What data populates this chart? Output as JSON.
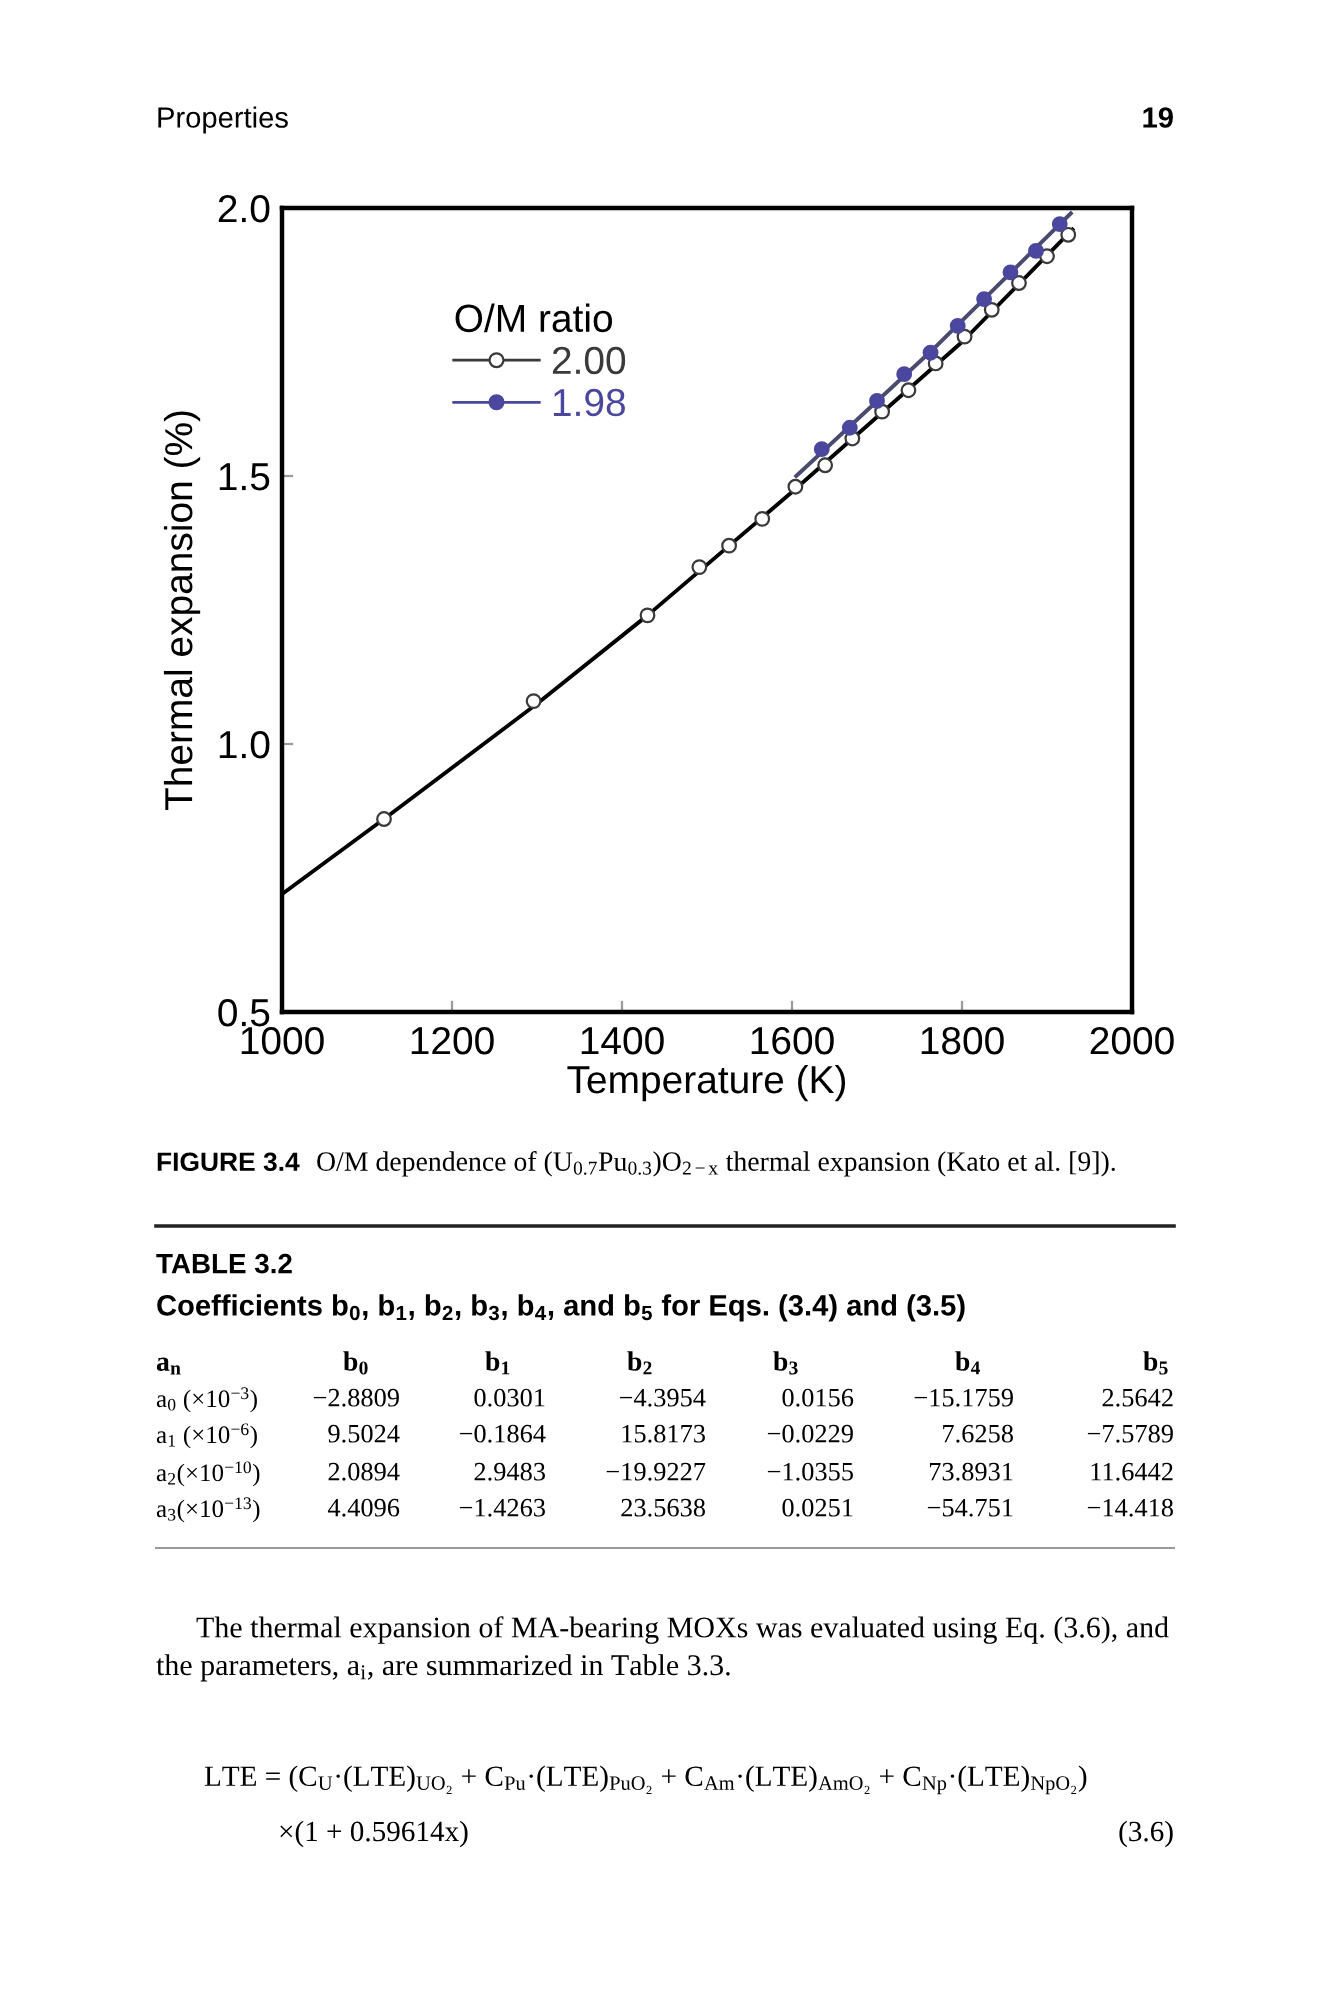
{
  "chart_data": {
    "type": "scatter",
    "xlabel": "Temperature (K)",
    "ylabel": "Thermal expansion (%)",
    "legend_title": "O/M ratio",
    "legend": "top left",
    "xlim": [
      1000,
      2000
    ],
    "xticks": [
      1000,
      1200,
      1400,
      1600,
      1800,
      2000
    ],
    "ylim": [
      0.5,
      2.0
    ],
    "yticks": [
      0.5,
      {
        "value": 1,
        "label": "1.0"
      },
      1.5,
      {
        "value": 2,
        "label": "2.0"
      }
    ],
    "series": [
      {
        "type": "line",
        "marker": "none",
        "color": "#000000",
        "x": [
          1000,
          1120,
          1300,
          1430,
          1600,
          1800,
          1930
        ],
        "values": [
          0.72,
          0.86,
          1.075,
          1.24,
          1.47,
          1.75,
          1.96
        ]
      },
      {
        "type": "line",
        "marker": "none",
        "color": "#4a4a6e",
        "x": [
          1605,
          1765,
          1928
        ],
        "values": [
          1.5,
          1.735,
          1.99
        ]
      },
      {
        "name": "2.00",
        "marker": "circle-open",
        "color": "#3a3a3a",
        "x": [
          1120,
          1296,
          1430,
          1491,
          1526,
          1565,
          1604,
          1639,
          1671,
          1706,
          1737,
          1769,
          1803,
          1835,
          1867,
          1900,
          1925
        ],
        "values": [
          0.86,
          1.08,
          1.24,
          1.33,
          1.37,
          1.42,
          1.48,
          1.52,
          1.57,
          1.62,
          1.66,
          1.71,
          1.76,
          1.81,
          1.86,
          1.91,
          1.95
        ]
      },
      {
        "name": "1.98",
        "marker": "circle",
        "color": "#4b479e",
        "x": [
          1635,
          1668,
          1700,
          1732,
          1763,
          1795,
          1826,
          1857,
          1887,
          1915
        ],
        "values": [
          1.55,
          1.59,
          1.64,
          1.69,
          1.73,
          1.78,
          1.83,
          1.88,
          1.92,
          1.97
        ]
      }
    ],
    "annotations": [
      "Properties",
      "19",
      "FIGURE 3.4",
      "O/M dependence of (U$_{0.7}$Pu$_{0.3}$)O$_{2−x}$ thermal expansion (Kato et al. [9]).",
      "TABLE 3.2",
      "Coefficients b$_{0}$, b$_{1}$, b$_{2}$, b$_{3}$, b$_{4}$, and b$_{5}$ for Eqs. (3.4) and (3.5)",
      "a$_{n}$",
      "b$_{0}$",
      "b$_{1}$",
      "b$_{2}$",
      "b$_{3}$",
      "b$_{4}$",
      "b$_{5}$",
      "a$_{0}$ (×10$^{−3}$)",
      "−2.8809",
      "0.0301",
      "−4.3954",
      "0.0156",
      "−15.1759",
      "2.5642",
      "a$_{1}$ (×10$^{−6}$)",
      "9.5024",
      "−0.1864",
      "15.8173",
      "−0.0229",
      "7.6258",
      "−7.5789",
      "a$_{2}$(×10$^{−10}$)",
      "2.0894",
      "2.9483",
      "−19.9227",
      "−1.0355",
      "73.8931",
      "11.6442",
      "a$_{3}$(×10$^{−13}$)",
      "4.4096",
      "−1.4263",
      "23.5638",
      "0.0251",
      "−54.751",
      "−14.418",
      "The thermal expansion of MA-bearing MOXs was evaluated using Eq. (3.6), and",
      "the parameters, a$_{i}$, are summarized in Table 3.3.",
      "LTE = (C$_{U}$·(LTE)$_{UO₂}$ + C$_{Pu}$·(LTE)$_{PuO₂}$ + C$_{Am}$·(LTE)$_{AmO₂}$ + C$_{Np}$·(LTE)$_{NpO₂}$)",
      "×(1 + 0.59614x)",
      "(3.6)"
    ]
  }
}
